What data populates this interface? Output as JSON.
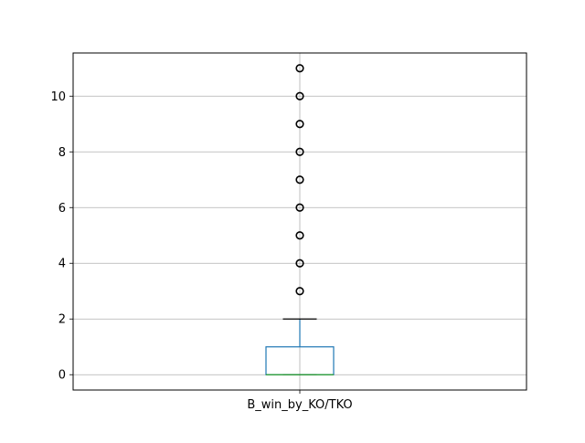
{
  "chart_data": {
    "type": "box",
    "title": "",
    "xlabel": "",
    "ylabel": "",
    "categories": [
      "B_win_by_KO/TKO"
    ],
    "ylim": [
      -0.55,
      11.55
    ],
    "yticks": [
      0,
      2,
      4,
      6,
      8,
      10
    ],
    "grid": true,
    "boxes": [
      {
        "category": "B_win_by_KO/TKO",
        "whisker_low": 0,
        "q1": 0,
        "median": 0,
        "q3": 1,
        "whisker_high": 2,
        "outliers": [
          3,
          4,
          5,
          6,
          7,
          8,
          9,
          10,
          11
        ]
      }
    ],
    "colors": {
      "box": "#1f77b4",
      "whisker": "#1f77b4",
      "cap": "#000000",
      "median": "#2ca02c",
      "outlier": "#000000",
      "grid": "#b0b0b0"
    }
  }
}
